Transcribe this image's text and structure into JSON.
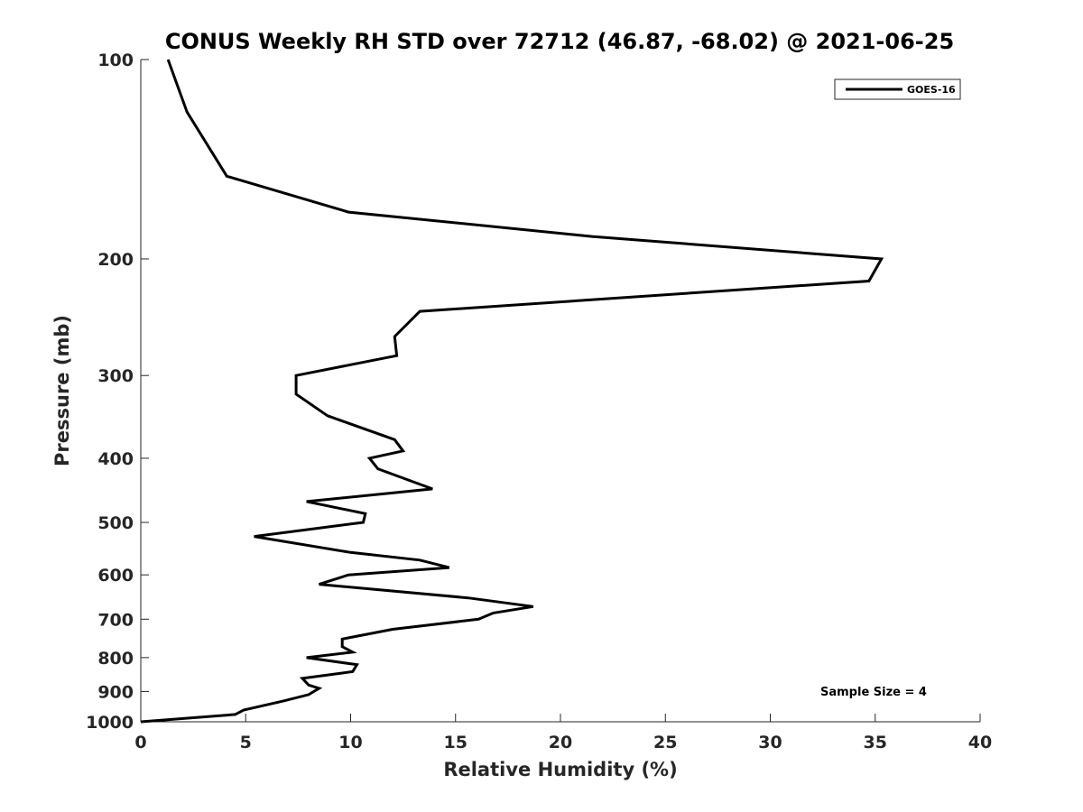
{
  "chart_data": {
    "type": "line",
    "title": "CONUS Weekly RH STD over 72712 (46.87, -68.02) @ 2021-06-25",
    "xlabel": "Relative Humidity (%)",
    "ylabel": "Pressure (mb)",
    "xlim": [
      0,
      40
    ],
    "ylim": [
      100,
      1000
    ],
    "y_scale": "log",
    "y_reversed": true,
    "x_ticks": [
      "0",
      "5",
      "10",
      "15",
      "20",
      "25",
      "30",
      "35",
      "40"
    ],
    "y_ticks": [
      "100",
      "200",
      "300",
      "400",
      "500",
      "600",
      "700",
      "800",
      "900",
      "1000"
    ],
    "grid": false,
    "legend": {
      "placement": "top-right",
      "entries": [
        "GOES-16"
      ]
    },
    "annotation": "Sample Size = 4",
    "series": [
      {
        "name": "GOES-16",
        "color": "#000000",
        "x": [
          1.3,
          2.2,
          4.1,
          9.9,
          21.5,
          35.3,
          34.7,
          13.3,
          12.1,
          12.2,
          7.4,
          7.4,
          8.9,
          12.1,
          12.5,
          10.9,
          11.3,
          13.9,
          7.9,
          10.7,
          10.6,
          5.4,
          10.0,
          13.3,
          14.7,
          9.9,
          8.5,
          15.6,
          18.7,
          16.8,
          16.1,
          12.0,
          9.6,
          9.6,
          10.1,
          7.9,
          10.3,
          10.1,
          7.7,
          8.0,
          8.5,
          8.0,
          6.8,
          4.9,
          4.5,
          0.0
        ],
        "y": [
          100,
          120,
          150,
          170,
          185,
          200,
          216,
          240,
          262,
          280,
          300,
          320,
          345,
          375,
          390,
          400,
          415,
          445,
          465,
          485,
          500,
          525,
          555,
          570,
          585,
          600,
          620,
          650,
          670,
          685,
          700,
          725,
          750,
          770,
          785,
          800,
          820,
          840,
          860,
          880,
          890,
          910,
          930,
          960,
          975,
          1000
        ]
      }
    ]
  }
}
